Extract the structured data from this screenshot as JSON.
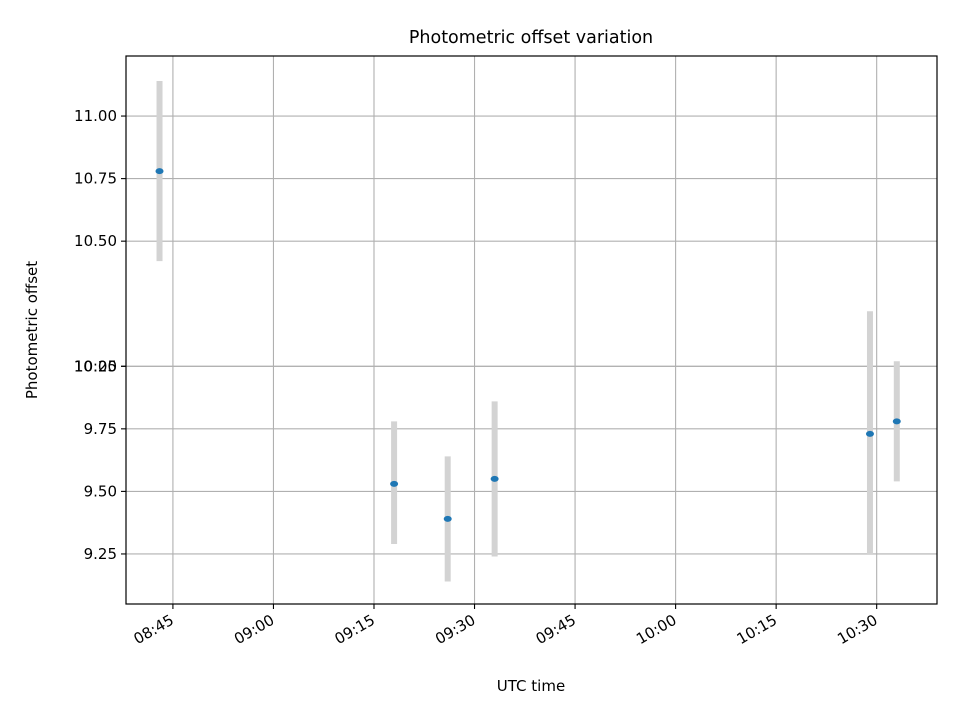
{
  "chart_data": {
    "type": "scatter",
    "title": "Photometric offset variation",
    "xlabel": "UTC time",
    "ylabel": "Photometric offset",
    "x_unit": "time of day (HH:MM, UTC)",
    "xlim": [
      "08:38",
      "10:39"
    ],
    "ylim": [
      9.05,
      11.24
    ],
    "x_ticks": [
      "08:45",
      "09:00",
      "09:15",
      "09:30",
      "09:45",
      "10:00",
      "10:15",
      "10:30"
    ],
    "y_ticks": [
      "9.25",
      "9.50",
      "9.75",
      "10.00",
      "10:25",
      "10.50",
      "10.75",
      "11.00"
    ],
    "grid": true,
    "points": [
      {
        "x": "08:43",
        "y": 10.78,
        "ymin": 10.42,
        "ymax": 11.14
      },
      {
        "x": "09:18",
        "y": 9.53,
        "ymin": 9.29,
        "ymax": 9.78
      },
      {
        "x": "09:26",
        "y": 9.39,
        "ymin": 9.14,
        "ymax": 9.64
      },
      {
        "x": "09:33",
        "y": 9.55,
        "ymin": 9.24,
        "ymax": 9.86
      },
      {
        "x": "10:29",
        "y": 9.73,
        "ymin": 9.25,
        "ymax": 10.22
      },
      {
        "x": "10:33",
        "y": 9.78,
        "ymin": 9.54,
        "ymax": 10.02
      }
    ],
    "colors": {
      "marker": "#1f77b4",
      "errorbar": "#d3d3d3",
      "grid": "#b0b0b0",
      "axes": "#000000"
    }
  }
}
